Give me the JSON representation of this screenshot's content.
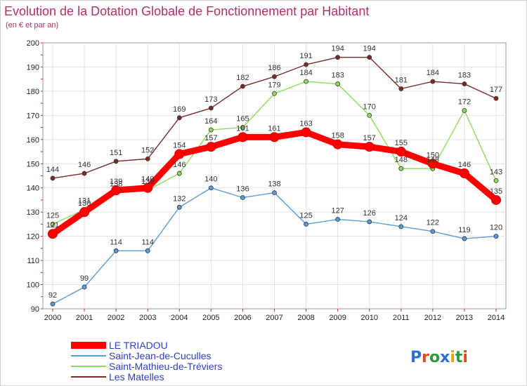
{
  "chart_data": {
    "type": "line",
    "title": "Evolution de la Dotation Globale de Fonctionnement par Habitant",
    "subtitle": "(en € et par an)",
    "xlabel": "",
    "ylabel": "",
    "categories": [
      "2000",
      "2001",
      "2002",
      "2003",
      "2004",
      "2005",
      "2006",
      "2007",
      "2008",
      "2009",
      "2010",
      "2011",
      "2012",
      "2013",
      "2014"
    ],
    "ylim": [
      90,
      200
    ],
    "yticks": [
      90,
      100,
      110,
      120,
      130,
      140,
      150,
      160,
      170,
      180,
      190,
      200
    ],
    "grid": true,
    "legend_placement": "bottom-left",
    "series": [
      {
        "name": "LE TRIADOU",
        "color": "#ff0000",
        "values": [
          121,
          130,
          139,
          140,
          154,
          157,
          161,
          161,
          163,
          158,
          157,
          155,
          150,
          146,
          135
        ],
        "labels": [
          "121",
          "130",
          "139",
          "140",
          "154",
          "157",
          "161",
          "161",
          "163",
          "158",
          "157",
          "155",
          "150",
          "146",
          "135"
        ]
      },
      {
        "name": "Saint-Jean-de-Cuculles",
        "color": "#5b9bd5",
        "values": [
          92,
          99,
          114,
          114,
          132,
          140,
          136,
          138,
          125,
          127,
          126,
          124,
          122,
          119,
          120
        ],
        "labels": [
          "92",
          "99",
          "114",
          "114",
          "132",
          "140",
          "136",
          "138",
          "125",
          "127",
          "126",
          "124",
          "122",
          "119",
          "120"
        ]
      },
      {
        "name": "Saint-Mathieu-de-Tréviers",
        "color": "#8ddb5a",
        "values": [
          125,
          131,
          138,
          139,
          146,
          164,
          165,
          179,
          184,
          183,
          170,
          148,
          148,
          172,
          143
        ],
        "labels": [
          "125",
          "131",
          "138",
          "139",
          "146",
          "164",
          "165",
          "179",
          "184",
          "183",
          "170",
          "148",
          "148",
          "172",
          "143"
        ]
      },
      {
        "name": "Les Matelles",
        "color": "#7b2a2a",
        "values": [
          144,
          146,
          151,
          152,
          169,
          173,
          182,
          186,
          191,
          194,
          194,
          181,
          184,
          183,
          177
        ],
        "labels": [
          "144",
          "146",
          "151",
          "152",
          "169",
          "173",
          "182",
          "186",
          "191",
          "194",
          "194",
          "181",
          "184",
          "183",
          "177"
        ]
      }
    ]
  },
  "logo": {
    "text": "Proxiti",
    "letters": [
      "P",
      "r",
      "o",
      "x",
      "i",
      "t",
      "i"
    ],
    "colors": [
      "#2f6fd6",
      "#e04a1a",
      "#2a9a3a",
      "#2f6fd6",
      "#e0a020",
      "#2a9a3a",
      "#e04a1a"
    ]
  }
}
